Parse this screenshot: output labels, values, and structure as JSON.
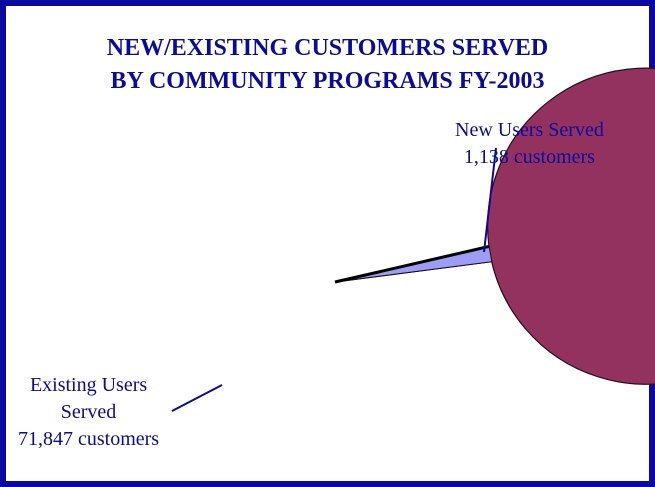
{
  "chart_data": {
    "type": "pie",
    "title_lines": [
      "NEW/EXISTING CUSTOMERS SERVED",
      "BY COMMUNITY PROGRAMS FY-2003"
    ],
    "slices": [
      {
        "name_lines": [
          "Existing Users",
          "Served"
        ],
        "value": 71847,
        "value_text": "71,847 customers",
        "color": "#93325e"
      },
      {
        "name_lines": [
          "New Users Served"
        ],
        "value": 1138,
        "value_text": "1,138 customers",
        "color": "#9d9cf6"
      }
    ]
  },
  "colors": {
    "title": "#0a0aa0",
    "border": "#0a0aa0",
    "label": "#0a0aa0"
  }
}
